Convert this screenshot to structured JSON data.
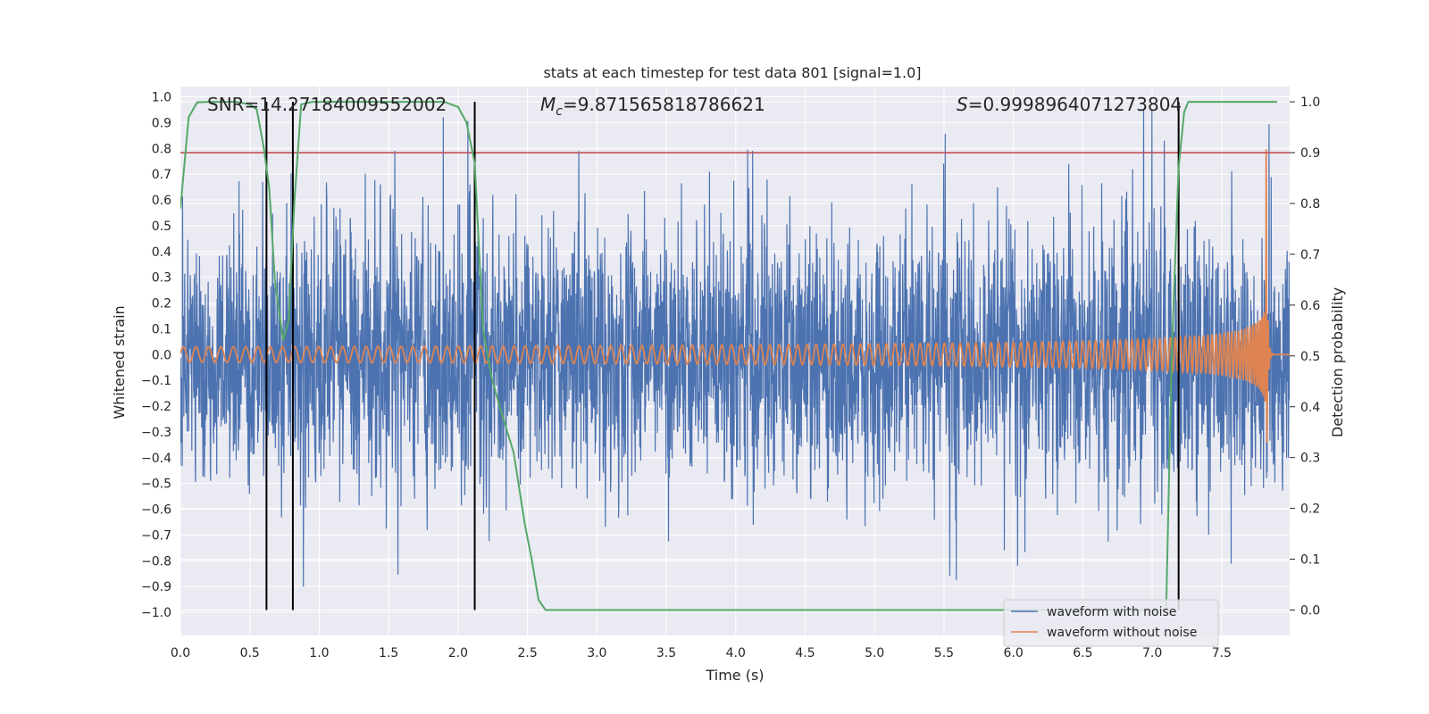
{
  "chart_data": {
    "type": "line",
    "title": "stats at each timestep for test data 801 [signal=1.0]",
    "xlabel": "Time (s)",
    "ylabel": "Whitened strain",
    "y2label": "Detection probability",
    "xlim": [
      0.0,
      7.99
    ],
    "ylim": [
      -1.09,
      1.04
    ],
    "y2lim": [
      -0.05,
      1.03
    ],
    "xticks": [
      0.0,
      0.5,
      1.0,
      1.5,
      2.0,
      2.5,
      3.0,
      3.5,
      4.0,
      4.5,
      5.0,
      5.5,
      6.0,
      6.5,
      7.0,
      7.5
    ],
    "xtick_labels": [
      "0.0",
      "0.5",
      "1.0",
      "1.5",
      "2.0",
      "2.5",
      "3.0",
      "3.5",
      "4.0",
      "4.5",
      "5.0",
      "5.5",
      "6.0",
      "6.5",
      "7.0",
      "7.5"
    ],
    "yticks": [
      1.0,
      0.9,
      0.8,
      0.7,
      0.6,
      0.5,
      0.4,
      0.3,
      0.2,
      0.1,
      0.0,
      -0.1,
      -0.2,
      -0.3,
      -0.4,
      -0.5,
      -0.6,
      -0.7,
      -0.8,
      -0.9,
      -1.0
    ],
    "ytick_labels": [
      "1.0",
      "0.9",
      "0.8",
      "0.7",
      "0.6",
      "0.5",
      "0.4",
      "0.3",
      "0.2",
      "0.1",
      "0.0",
      "−0.1",
      "−0.2",
      "−0.3",
      "−0.4",
      "−0.5",
      "−0.6",
      "−0.7",
      "−0.8",
      "−0.9",
      "−1.0"
    ],
    "y2ticks": [
      1.0,
      0.9,
      0.8,
      0.7,
      0.6,
      0.5,
      0.4,
      0.3,
      0.2,
      0.1,
      0.0
    ],
    "y2tick_labels": [
      "1.0",
      "0.9",
      "0.8",
      "0.7",
      "0.6",
      "0.5",
      "0.4",
      "0.3",
      "0.2",
      "0.1",
      "0.0"
    ],
    "annotations": {
      "snr": "SNR=14.27184009552002",
      "mc_symbol": "M",
      "mc_sub": "c",
      "mc_value": "=9.871565818786621",
      "s_symbol": "S",
      "s_value": "=0.9998964071273804"
    },
    "threshold": {
      "value": 0.9,
      "color": "#c44e52"
    },
    "vertical_lines": [
      0.62,
      0.81,
      2.12,
      7.19
    ],
    "probability": {
      "name": "detection probability",
      "color": "#55a868",
      "x": [
        0.0,
        0.06,
        0.12,
        0.2,
        0.3,
        0.4,
        0.5,
        0.55,
        0.6,
        0.64,
        0.68,
        0.74,
        0.78,
        0.82,
        0.87,
        0.95,
        1.1,
        1.3,
        1.5,
        1.7,
        1.9,
        2.0,
        2.06,
        2.12,
        2.18,
        2.24,
        2.3,
        2.4,
        2.48,
        2.53,
        2.58,
        2.63,
        3.0,
        4.0,
        5.0,
        6.0,
        7.1,
        7.14,
        7.19,
        7.23,
        7.26,
        7.5,
        7.9
      ],
      "y": [
        0.79,
        0.97,
        0.999,
        1.0,
        1.0,
        1.0,
        0.995,
        0.985,
        0.91,
        0.83,
        0.65,
        0.53,
        0.57,
        0.8,
        0.995,
        1.0,
        1.0,
        1.0,
        1.0,
        1.0,
        1.0,
        0.99,
        0.96,
        0.88,
        0.55,
        0.46,
        0.4,
        0.31,
        0.17,
        0.1,
        0.02,
        0.0,
        0.0,
        0.0,
        0.0,
        0.0,
        0.0,
        0.5,
        0.87,
        0.98,
        1.0,
        1.0,
        1.0
      ]
    },
    "series": [
      {
        "name": "waveform with noise",
        "color": "#4c72b0",
        "x_range": [
          0.0,
          7.99
        ],
        "typical_amplitude": 0.45,
        "peak_amplitude": 0.95
      },
      {
        "name": "waveform without noise",
        "color": "#dd8452",
        "x_range": [
          0.0,
          7.99
        ],
        "start_amplitude": 0.03,
        "peak_amplitude": 0.86,
        "peak_time": 7.82,
        "start_frequency_hz": 11,
        "end_frequency_hz": 70
      }
    ],
    "legend": {
      "position": "lower-right",
      "items": [
        {
          "label": "waveform with noise",
          "color": "#4c72b0"
        },
        {
          "label": "waveform without noise",
          "color": "#dd8452"
        }
      ]
    },
    "style": {
      "axes_bg": "#eaeaf2",
      "grid_color": "#ffffff",
      "vline_color": "#000000"
    }
  }
}
